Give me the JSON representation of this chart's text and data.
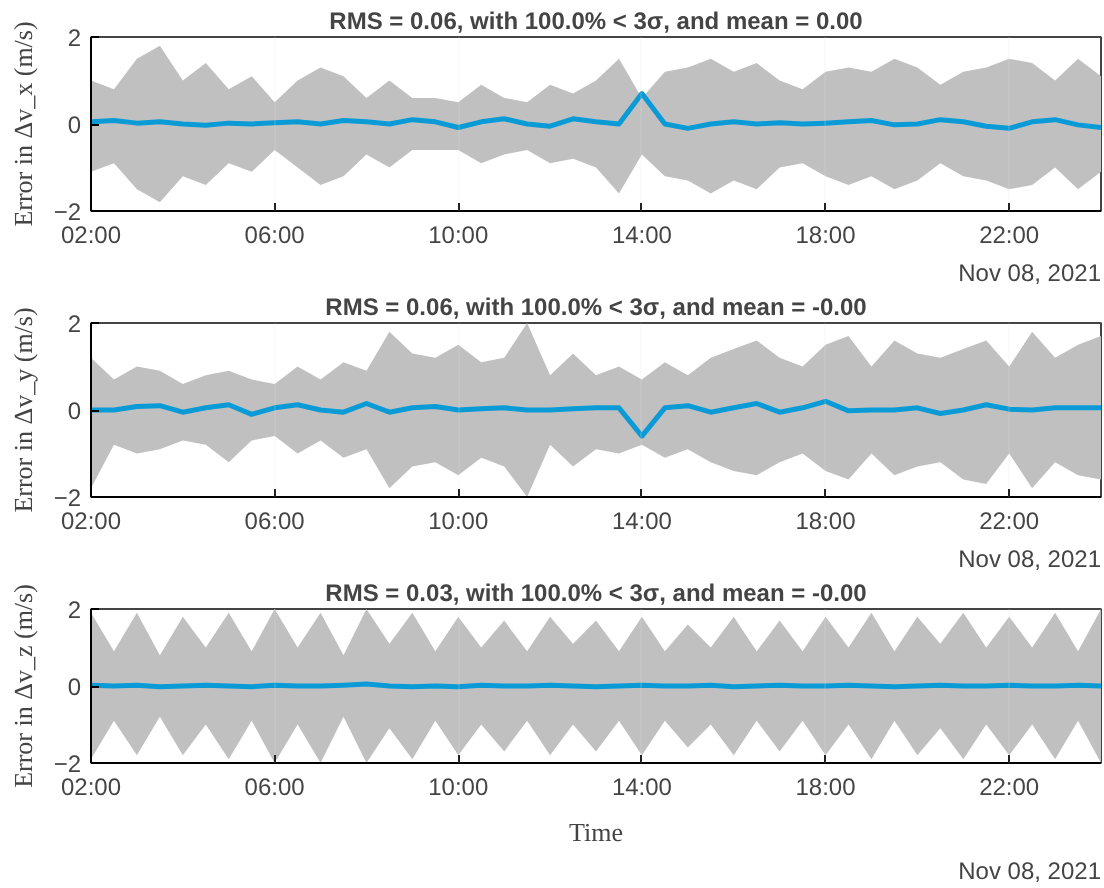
{
  "chart_data": [
    {
      "type": "line",
      "title": "RMS = 0.06, with 100.0% < 3σ, and mean = 0.00",
      "ylabel": "Error in Δv_x (m/s)",
      "annotations": [
        "Nov 08, 2021"
      ],
      "x": [
        2,
        2.5,
        3,
        3.5,
        4,
        4.5,
        5,
        5.5,
        6,
        6.5,
        7,
        7.5,
        8,
        8.5,
        9,
        9.5,
        10,
        10.5,
        11,
        11.5,
        12,
        12.5,
        13,
        13.5,
        14,
        14.5,
        15,
        15.5,
        16,
        16.5,
        17,
        17.5,
        18,
        18.5,
        19,
        19.5,
        20,
        20.5,
        21,
        21.5,
        22,
        22.5,
        23,
        23.5,
        24
      ],
      "series": [
        {
          "color": "#0a9ad6",
          "values": [
            0.05,
            0.08,
            0.02,
            0.05,
            0.0,
            -0.03,
            0.02,
            0.0,
            0.03,
            0.05,
            0.0,
            0.08,
            0.05,
            0.0,
            0.1,
            0.05,
            -0.08,
            0.05,
            0.12,
            0.0,
            -0.05,
            0.12,
            0.05,
            0.0,
            0.7,
            0.0,
            -0.1,
            0.0,
            0.05,
            0.0,
            0.03,
            0.0,
            0.02,
            0.05,
            0.08,
            -0.02,
            0.0,
            0.1,
            0.05,
            -0.05,
            -0.1,
            0.05,
            0.1,
            -0.02,
            -0.08
          ],
          "upper": [
            1.0,
            0.8,
            1.5,
            1.8,
            1.0,
            1.4,
            0.8,
            1.1,
            0.5,
            1.0,
            1.3,
            1.1,
            0.6,
            1.0,
            0.6,
            0.6,
            0.5,
            0.9,
            0.6,
            0.5,
            0.9,
            0.7,
            1.0,
            1.5,
            0.6,
            1.2,
            1.3,
            1.5,
            1.2,
            1.4,
            1.0,
            0.8,
            1.2,
            1.3,
            1.2,
            1.5,
            1.3,
            0.9,
            1.2,
            1.3,
            1.5,
            1.4,
            1.0,
            1.5,
            1.1
          ],
          "lower": [
            -1.1,
            -0.9,
            -1.5,
            -1.8,
            -1.2,
            -1.4,
            -0.9,
            -1.1,
            -0.6,
            -1.0,
            -1.4,
            -1.2,
            -0.7,
            -1.0,
            -0.6,
            -0.6,
            -0.6,
            -0.9,
            -0.7,
            -0.6,
            -0.9,
            -0.8,
            -1.0,
            -1.6,
            -0.7,
            -1.2,
            -1.3,
            -1.6,
            -1.3,
            -1.5,
            -1.0,
            -0.9,
            -1.2,
            -1.4,
            -1.2,
            -1.5,
            -1.3,
            -0.9,
            -1.2,
            -1.3,
            -1.5,
            -1.4,
            -1.0,
            -1.5,
            -1.1
          ]
        }
      ],
      "xlim": [
        2,
        24
      ],
      "ylim": [
        -2,
        2
      ],
      "yticks": [
        -2,
        0,
        2
      ],
      "xticks": [
        {
          "value": 2,
          "label": "02:00"
        },
        {
          "value": 6,
          "label": "06:00"
        },
        {
          "value": 10,
          "label": "10:00"
        },
        {
          "value": 14,
          "label": "14:00"
        },
        {
          "value": 18,
          "label": "18:00"
        },
        {
          "value": 22,
          "label": "22:00"
        }
      ],
      "grid": "x"
    },
    {
      "type": "line",
      "title": "RMS = 0.06, with 100.0% < 3σ, and mean = -0.00",
      "ylabel": "Error in Δv_y (m/s)",
      "annotations": [
        "Nov 08, 2021"
      ],
      "x": [
        2,
        2.5,
        3,
        3.5,
        4,
        4.5,
        5,
        5.5,
        6,
        6.5,
        7,
        7.5,
        8,
        8.5,
        9,
        9.5,
        10,
        10.5,
        11,
        11.5,
        12,
        12.5,
        13,
        13.5,
        14,
        14.5,
        15,
        15.5,
        16,
        16.5,
        17,
        17.5,
        18,
        18.5,
        19,
        19.5,
        20,
        20.5,
        21,
        21.5,
        22,
        22.5,
        23,
        23.5,
        24
      ],
      "series": [
        {
          "color": "#0a9ad6",
          "values": [
            0.0,
            0.0,
            0.08,
            0.1,
            -0.05,
            0.05,
            0.12,
            -0.1,
            0.05,
            0.12,
            0.0,
            -0.05,
            0.15,
            -0.05,
            0.05,
            0.08,
            0.0,
            0.03,
            0.05,
            0.0,
            0.0,
            0.03,
            0.05,
            0.05,
            -0.6,
            0.05,
            0.1,
            -0.05,
            0.05,
            0.15,
            -0.05,
            0.05,
            0.2,
            -0.02,
            0.0,
            0.0,
            0.05,
            -0.08,
            0.0,
            0.12,
            0.02,
            0.0,
            0.05,
            0.05,
            0.05
          ],
          "upper": [
            1.2,
            0.7,
            1.0,
            0.9,
            0.6,
            0.8,
            0.9,
            0.7,
            0.6,
            1.0,
            0.7,
            1.1,
            0.9,
            1.8,
            1.3,
            1.2,
            1.5,
            1.1,
            1.2,
            2.0,
            0.8,
            1.3,
            0.8,
            1.0,
            0.7,
            1.1,
            0.8,
            1.2,
            1.4,
            1.6,
            1.2,
            1.0,
            1.5,
            1.7,
            1.0,
            1.6,
            1.3,
            1.2,
            1.4,
            1.6,
            1.0,
            1.8,
            1.2,
            1.5,
            1.7
          ],
          "lower": [
            -1.8,
            -0.8,
            -1.0,
            -0.9,
            -0.7,
            -0.8,
            -1.2,
            -0.7,
            -0.6,
            -1.0,
            -0.7,
            -1.1,
            -0.9,
            -1.8,
            -1.3,
            -1.2,
            -1.5,
            -1.1,
            -1.3,
            -2.0,
            -0.8,
            -1.3,
            -0.9,
            -1.0,
            -0.8,
            -1.1,
            -0.9,
            -1.2,
            -1.4,
            -1.5,
            -1.2,
            -1.0,
            -1.4,
            -1.6,
            -1.0,
            -1.5,
            -1.3,
            -1.2,
            -1.6,
            -1.7,
            -1.0,
            -1.8,
            -1.2,
            -1.5,
            -1.6
          ]
        }
      ],
      "xlim": [
        2,
        24
      ],
      "ylim": [
        -2,
        2
      ],
      "yticks": [
        -2,
        0,
        2
      ],
      "xticks": [
        {
          "value": 2,
          "label": "02:00"
        },
        {
          "value": 6,
          "label": "06:00"
        },
        {
          "value": 10,
          "label": "10:00"
        },
        {
          "value": 14,
          "label": "14:00"
        },
        {
          "value": 18,
          "label": "18:00"
        },
        {
          "value": 22,
          "label": "22:00"
        }
      ],
      "grid": "x"
    },
    {
      "type": "line",
      "title": "RMS = 0.03, with 100.0% < 3σ, and mean = -0.00",
      "ylabel": "Error in Δv_z (m/s)",
      "xlabel": "Time",
      "annotations": [
        "Nov 08, 2021"
      ],
      "x": [
        2,
        2.5,
        3,
        3.5,
        4,
        4.5,
        5,
        5.5,
        6,
        6.5,
        7,
        7.5,
        8,
        8.5,
        9,
        9.5,
        10,
        10.5,
        11,
        11.5,
        12,
        12.5,
        13,
        13.5,
        14,
        14.5,
        15,
        15.5,
        16,
        16.5,
        17,
        17.5,
        18,
        18.5,
        19,
        19.5,
        20,
        20.5,
        21,
        21.5,
        22,
        22.5,
        23,
        23.5,
        24
      ],
      "series": [
        {
          "color": "#0a9ad6",
          "values": [
            0.02,
            0.0,
            0.02,
            -0.02,
            0.0,
            0.02,
            0.0,
            -0.02,
            0.02,
            0.0,
            0.0,
            0.02,
            0.05,
            0.0,
            -0.02,
            0.0,
            -0.02,
            0.02,
            0.0,
            0.0,
            0.02,
            0.0,
            -0.02,
            0.0,
            0.02,
            0.0,
            0.0,
            0.02,
            -0.02,
            0.0,
            0.02,
            0.0,
            0.0,
            0.02,
            0.0,
            -0.02,
            0.0,
            0.02,
            0.0,
            0.0,
            0.02,
            0.0,
            0.0,
            0.02,
            0.0
          ],
          "upper": [
            1.9,
            0.9,
            1.9,
            0.8,
            1.8,
            1.0,
            1.9,
            0.9,
            2.0,
            1.0,
            1.9,
            0.8,
            2.0,
            1.1,
            1.9,
            0.9,
            1.8,
            1.0,
            1.7,
            0.9,
            1.8,
            1.1,
            1.7,
            0.9,
            1.8,
            0.9,
            1.6,
            1.0,
            1.8,
            0.9,
            1.7,
            0.9,
            1.8,
            1.0,
            1.9,
            0.9,
            1.8,
            1.1,
            1.9,
            1.0,
            1.8,
            1.0,
            1.9,
            0.9,
            2.0
          ],
          "lower": [
            -1.9,
            -0.9,
            -1.8,
            -0.8,
            -1.8,
            -1.0,
            -1.9,
            -0.9,
            -2.0,
            -1.0,
            -2.0,
            -0.8,
            -2.0,
            -1.1,
            -1.9,
            -0.9,
            -1.8,
            -1.0,
            -1.7,
            -0.9,
            -1.8,
            -1.0,
            -1.7,
            -0.9,
            -1.8,
            -0.9,
            -1.6,
            -1.0,
            -1.8,
            -0.9,
            -1.7,
            -0.9,
            -1.8,
            -1.0,
            -1.9,
            -0.9,
            -1.8,
            -1.1,
            -1.9,
            -1.0,
            -1.8,
            -1.0,
            -1.9,
            -0.9,
            -2.0
          ]
        }
      ],
      "xlim": [
        2,
        24
      ],
      "ylim": [
        -2,
        2
      ],
      "yticks": [
        -2,
        0,
        2
      ],
      "xticks": [
        {
          "value": 2,
          "label": "02:00"
        },
        {
          "value": 6,
          "label": "06:00"
        },
        {
          "value": 10,
          "label": "10:00"
        },
        {
          "value": 14,
          "label": "14:00"
        },
        {
          "value": 18,
          "label": "18:00"
        },
        {
          "value": 22,
          "label": "22:00"
        }
      ],
      "grid": "x"
    }
  ]
}
